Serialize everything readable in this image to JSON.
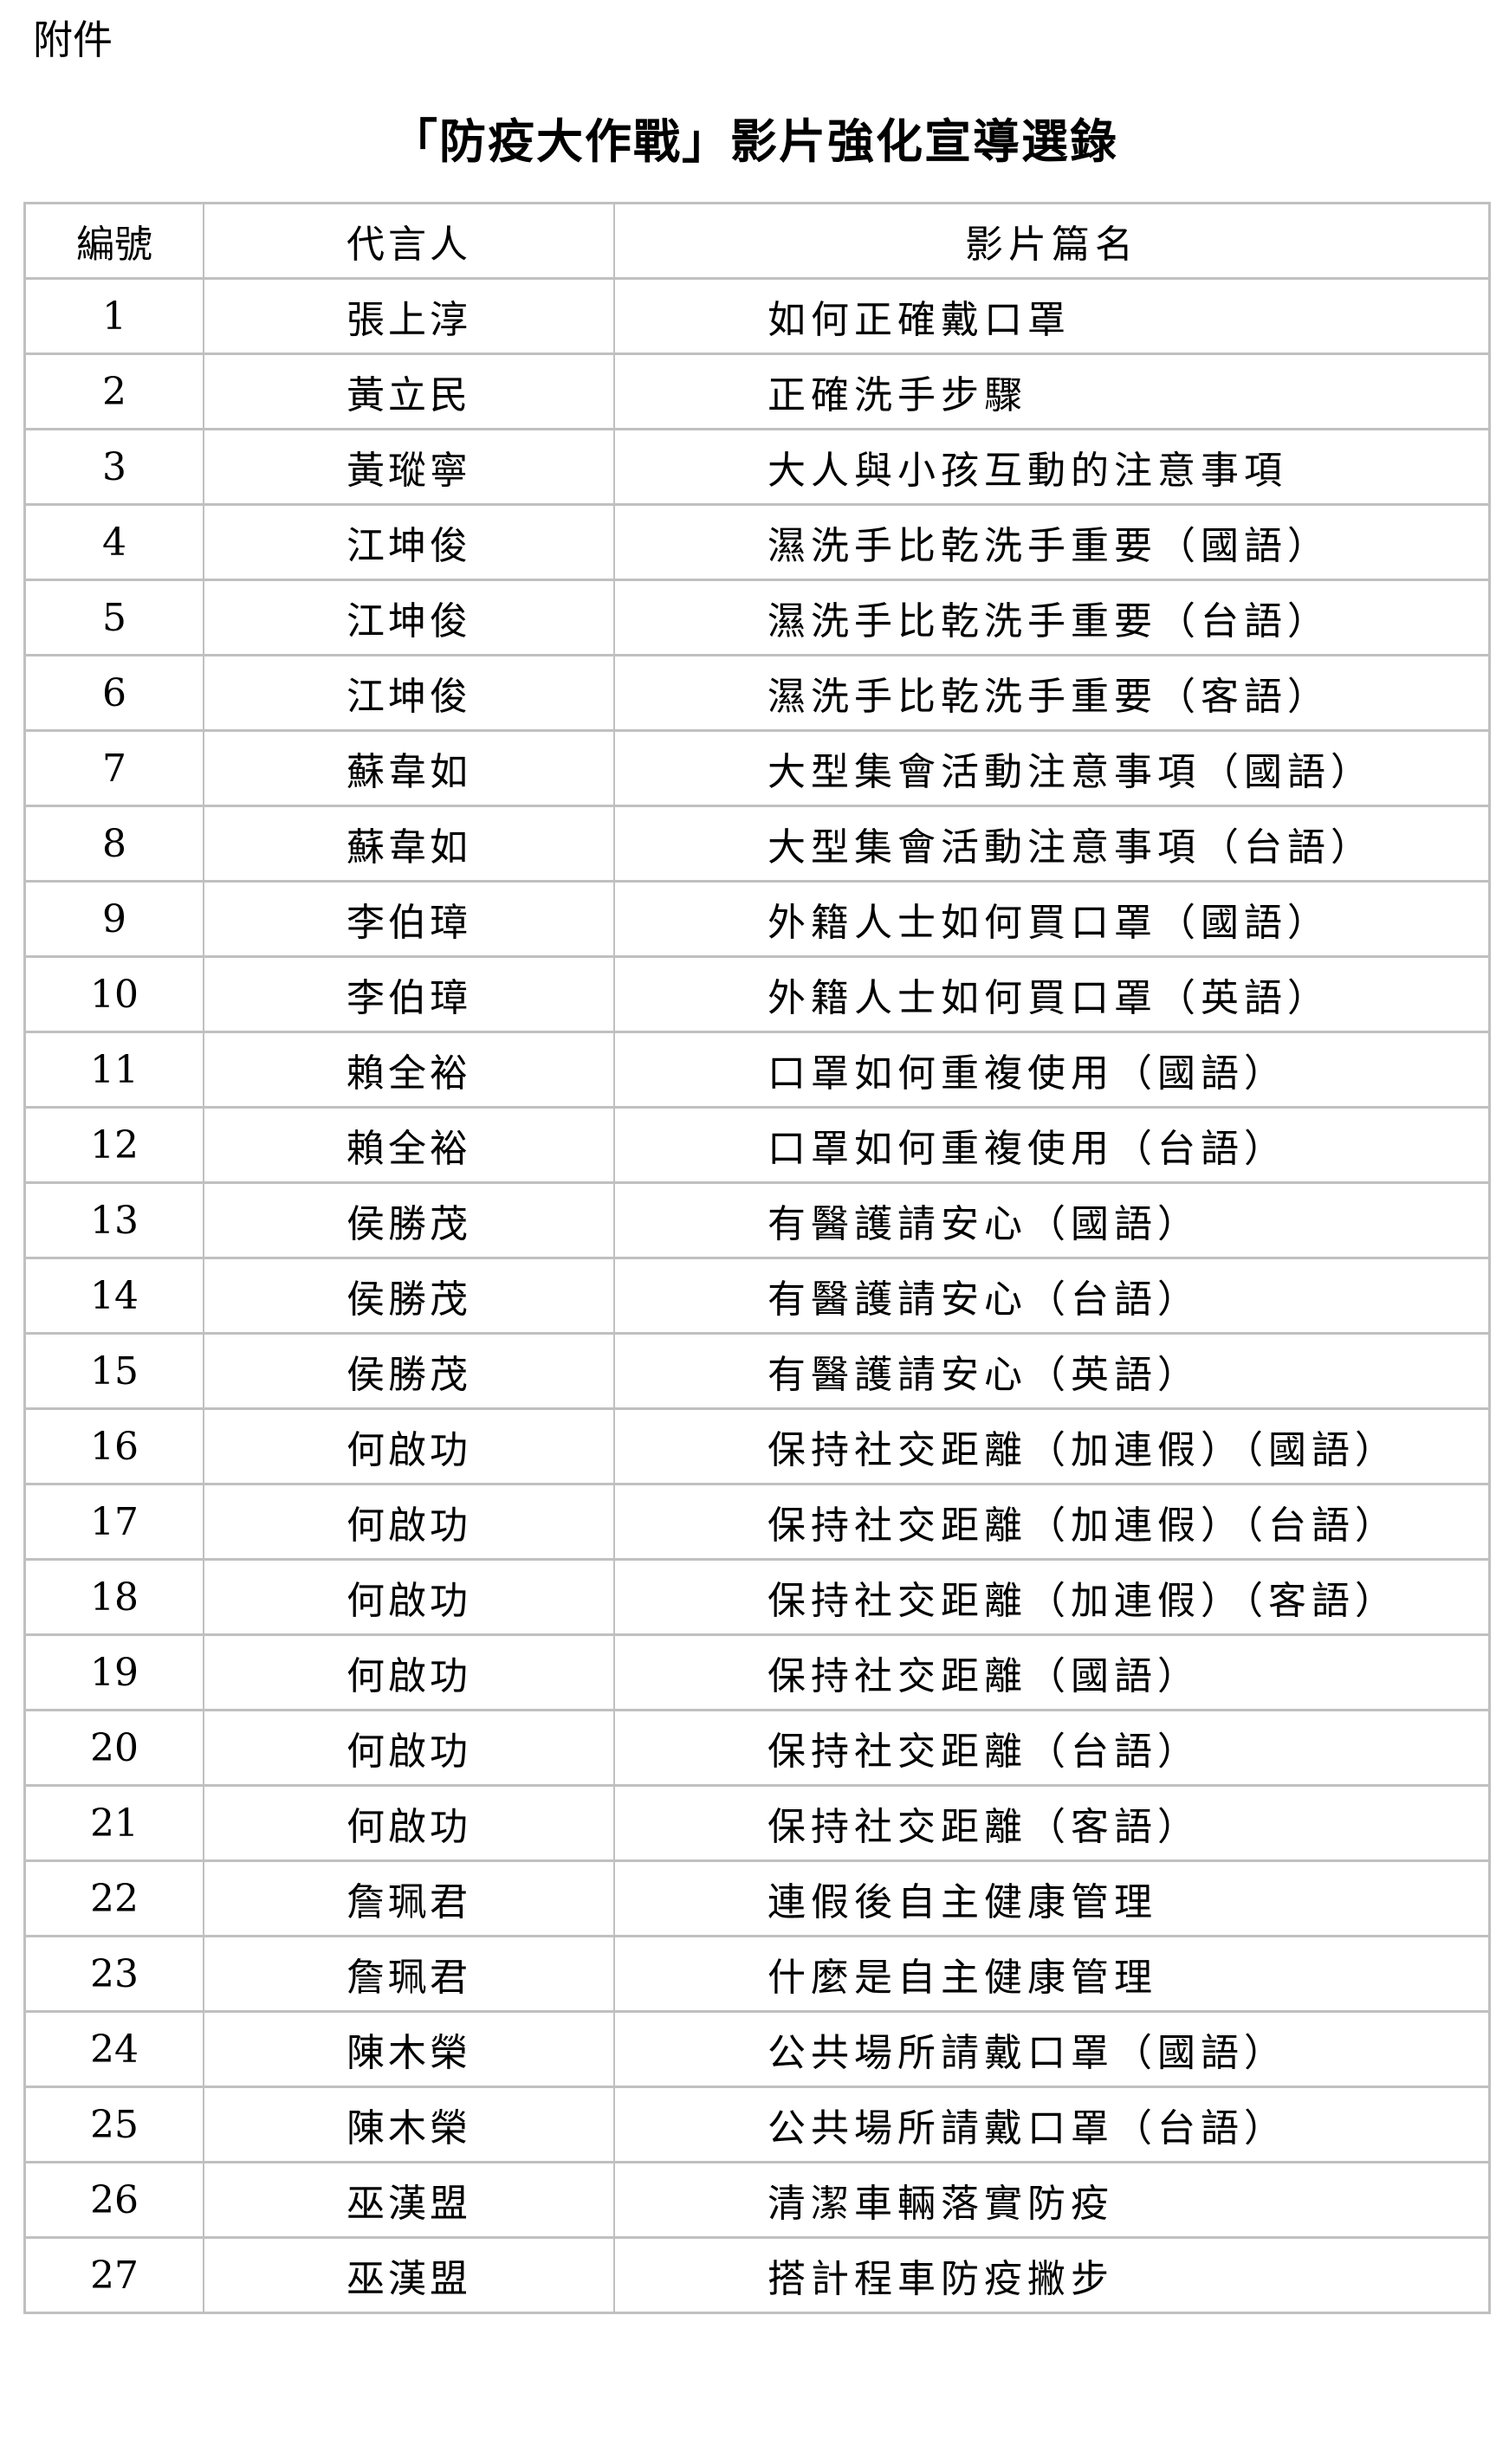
{
  "attachment_label": "附件",
  "title": "「防疫大作戰」影片強化宣導選錄",
  "table": {
    "headers": [
      "編號",
      "代言人",
      "影片篇名"
    ],
    "rows": [
      [
        "1",
        "張上淳",
        "如何正確戴口罩"
      ],
      [
        "2",
        "黃立民",
        "正確洗手步驟"
      ],
      [
        "3",
        "黃瑽寧",
        "大人與小孩互動的注意事項"
      ],
      [
        "4",
        "江坤俊",
        "濕洗手比乾洗手重要（國語）"
      ],
      [
        "5",
        "江坤俊",
        "濕洗手比乾洗手重要（台語）"
      ],
      [
        "6",
        "江坤俊",
        "濕洗手比乾洗手重要（客語）"
      ],
      [
        "7",
        "蘇韋如",
        "大型集會活動注意事項（國語）"
      ],
      [
        "8",
        "蘇韋如",
        "大型集會活動注意事項（台語）"
      ],
      [
        "9",
        "李伯璋",
        "外籍人士如何買口罩（國語）"
      ],
      [
        "10",
        "李伯璋",
        "外籍人士如何買口罩（英語）"
      ],
      [
        "11",
        "賴全裕",
        "口罩如何重複使用（國語）"
      ],
      [
        "12",
        "賴全裕",
        "口罩如何重複使用（台語）"
      ],
      [
        "13",
        "侯勝茂",
        "有醫護請安心（國語）"
      ],
      [
        "14",
        "侯勝茂",
        "有醫護請安心（台語）"
      ],
      [
        "15",
        "侯勝茂",
        "有醫護請安心（英語）"
      ],
      [
        "16",
        "何啟功",
        "保持社交距離（加連假）（國語）"
      ],
      [
        "17",
        "何啟功",
        "保持社交距離（加連假）（台語）"
      ],
      [
        "18",
        "何啟功",
        "保持社交距離（加連假）（客語）"
      ],
      [
        "19",
        "何啟功",
        "保持社交距離（國語）"
      ],
      [
        "20",
        "何啟功",
        "保持社交距離（台語）"
      ],
      [
        "21",
        "何啟功",
        "保持社交距離（客語）"
      ],
      [
        "22",
        "詹珮君",
        "連假後自主健康管理"
      ],
      [
        "23",
        "詹珮君",
        "什麼是自主健康管理"
      ],
      [
        "24",
        "陳木榮",
        "公共場所請戴口罩（國語）"
      ],
      [
        "25",
        "陳木榮",
        "公共場所請戴口罩（台語）"
      ],
      [
        "26",
        "巫漢盟",
        "清潔車輛落實防疫"
      ],
      [
        "27",
        "巫漢盟",
        "搭計程車防疫撇步"
      ]
    ]
  }
}
